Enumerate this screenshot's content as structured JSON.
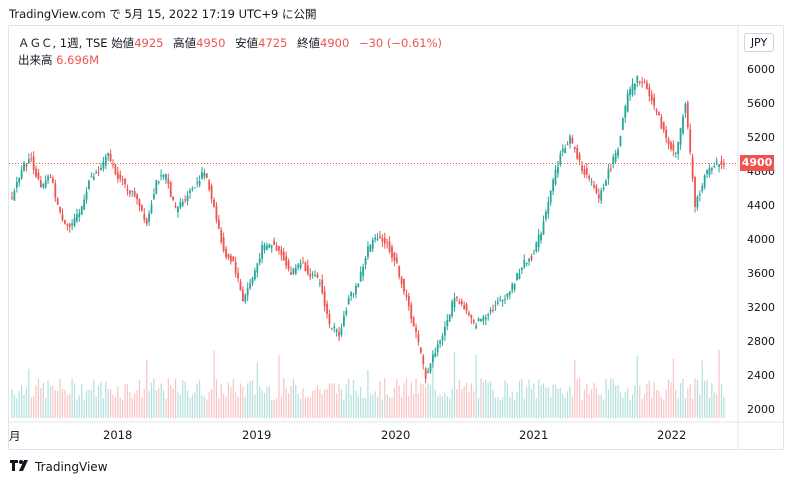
{
  "header": {
    "text": "TradingView.com で 5月 15, 2022 17:19 UTC+9 に公開"
  },
  "legend": {
    "symbol": "ＡＧＣ, 1週, TSE",
    "open_label": "始値",
    "open": "4925",
    "high_label": "高値",
    "high": "4950",
    "low_label": "安値",
    "low": "4725",
    "close_label": "終値",
    "close": "4900",
    "change": "−30 (−0.61%)",
    "volume_label": "出来高",
    "volume": "6.696M"
  },
  "currency": "JPY",
  "last_price_label": "4900",
  "footer": {
    "brand": "TradingView"
  },
  "colors": {
    "up": "#26a69a",
    "down": "#ef5350",
    "last_line": "#ef5350"
  },
  "chart_data": {
    "type": "candlestick",
    "interval": "1 week",
    "ylim": [
      1800,
      6200
    ],
    "y_ticks": [
      "6000",
      "5600",
      "5200",
      "4800",
      "4400",
      "4000",
      "3600",
      "3200",
      "2800",
      "2400",
      "2000"
    ],
    "x_ticks": [
      "月",
      "2018",
      "2019",
      "2020",
      "2021",
      "2022"
    ],
    "last_price": 4900,
    "grid": false,
    "anchors": [
      [
        0,
        4500
      ],
      [
        4,
        4850
      ],
      [
        8,
        4950
      ],
      [
        12,
        4600
      ],
      [
        16,
        4750
      ],
      [
        20,
        4300
      ],
      [
        24,
        4150
      ],
      [
        28,
        4300
      ],
      [
        32,
        4700
      ],
      [
        36,
        4800
      ],
      [
        40,
        5000
      ],
      [
        44,
        4750
      ],
      [
        48,
        4600
      ],
      [
        52,
        4500
      ],
      [
        56,
        4200
      ],
      [
        60,
        4700
      ],
      [
        64,
        4750
      ],
      [
        68,
        4350
      ],
      [
        72,
        4500
      ],
      [
        76,
        4650
      ],
      [
        80,
        4800
      ],
      [
        84,
        4400
      ],
      [
        88,
        3850
      ],
      [
        92,
        3750
      ],
      [
        96,
        3300
      ],
      [
        100,
        3550
      ],
      [
        104,
        3900
      ],
      [
        108,
        3950
      ],
      [
        112,
        3850
      ],
      [
        116,
        3600
      ],
      [
        120,
        3750
      ],
      [
        124,
        3600
      ],
      [
        128,
        3500
      ],
      [
        132,
        3000
      ],
      [
        136,
        2900
      ],
      [
        140,
        3300
      ],
      [
        144,
        3500
      ],
      [
        148,
        3900
      ],
      [
        152,
        4050
      ],
      [
        156,
        3950
      ],
      [
        160,
        3700
      ],
      [
        164,
        3300
      ],
      [
        168,
        2900
      ],
      [
        172,
        2400
      ],
      [
        176,
        2700
      ],
      [
        180,
        2950
      ],
      [
        184,
        3350
      ],
      [
        188,
        3200
      ],
      [
        192,
        3000
      ],
      [
        196,
        3100
      ],
      [
        200,
        3200
      ],
      [
        204,
        3300
      ],
      [
        208,
        3450
      ],
      [
        212,
        3700
      ],
      [
        216,
        3800
      ],
      [
        220,
        4100
      ],
      [
        224,
        4600
      ],
      [
        228,
        5000
      ],
      [
        232,
        5200
      ],
      [
        236,
        4900
      ],
      [
        240,
        4700
      ],
      [
        244,
        4500
      ],
      [
        248,
        4800
      ],
      [
        252,
        5100
      ],
      [
        256,
        5700
      ],
      [
        260,
        5900
      ],
      [
        264,
        5800
      ],
      [
        268,
        5500
      ],
      [
        272,
        5200
      ],
      [
        276,
        5000
      ],
      [
        280,
        5600
      ],
      [
        284,
        4400
      ],
      [
        288,
        4750
      ],
      [
        292,
        4900
      ],
      [
        296,
        4900
      ]
    ]
  }
}
